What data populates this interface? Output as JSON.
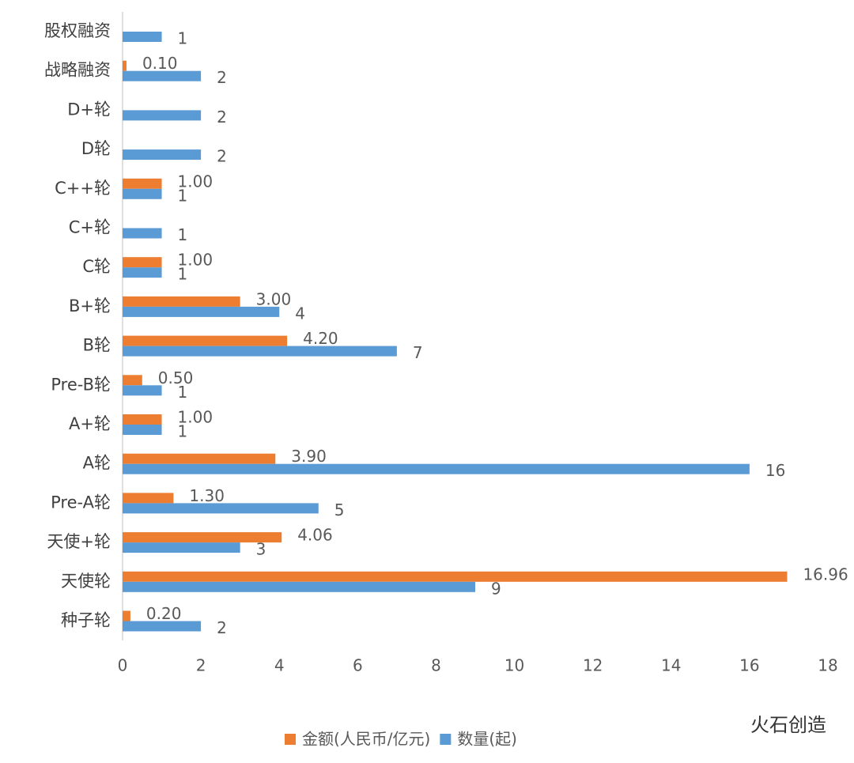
{
  "chart_data": {
    "type": "bar",
    "orientation": "horizontal",
    "categories": [
      "股权融资",
      "战略融资",
      "D+轮",
      "D轮",
      "C++轮",
      "C+轮",
      "C轮",
      "B+轮",
      "B轮",
      "Pre-B轮",
      "A+轮",
      "A轮",
      "Pre-A轮",
      "天使+轮",
      "天使轮",
      "种子轮"
    ],
    "series": [
      {
        "name": "金额(人民币/亿元)",
        "color": "#ed7d31",
        "values": [
          null,
          0.1,
          null,
          null,
          1,
          null,
          1,
          3,
          4.2,
          0.5,
          1,
          3.9,
          1.3,
          4.06,
          16.96,
          0.2
        ],
        "value_labels": [
          null,
          "0.10",
          null,
          null,
          "1.00",
          null,
          "1.00",
          "3.00",
          "4.20",
          "0.50",
          "1.00",
          "3.90",
          "1.30",
          "4.06",
          "16.96",
          "0.20"
        ]
      },
      {
        "name": "数量(起)",
        "color": "#5b9bd5",
        "values": [
          1,
          2,
          2,
          2,
          1,
          1,
          1,
          4,
          7,
          1,
          1,
          16,
          5,
          3,
          9,
          2
        ]
      }
    ],
    "xlim": [
      0,
      18
    ],
    "xticks": [
      0,
      2,
      4,
      6,
      8,
      10,
      12,
      14,
      16,
      18
    ],
    "legend": "bottom",
    "watermark": "火石创造"
  }
}
